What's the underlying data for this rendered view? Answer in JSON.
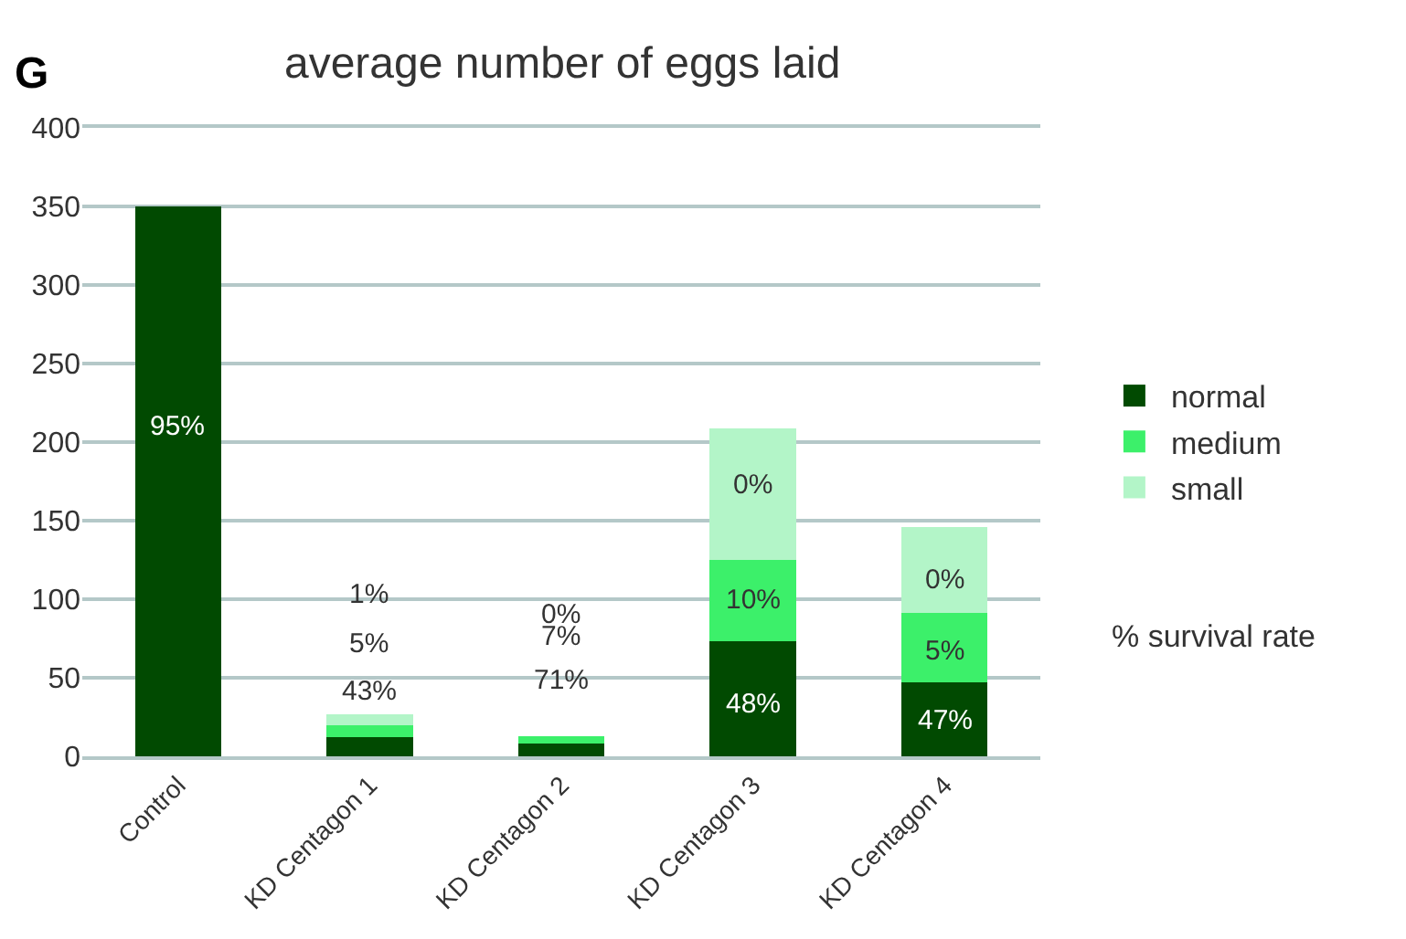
{
  "chart_data": {
    "type": "bar",
    "stacked": true,
    "title": "average number of eggs laid",
    "categories": [
      "Control",
      "KD Centagon 1",
      "KD Centagon 2",
      "KD Centagon 3",
      "KD Centagon 4"
    ],
    "series": [
      {
        "name": "normal",
        "color": "#014a01",
        "values": [
          350,
          12,
          8,
          73,
          47
        ]
      },
      {
        "name": "medium",
        "color": "#3cf06a",
        "values": [
          0,
          8,
          5,
          52,
          44
        ]
      },
      {
        "name": "small",
        "color": "#b3f5c8",
        "values": [
          0,
          7,
          0,
          84,
          55
        ]
      }
    ],
    "ylim": [
      0,
      400
    ],
    "yticks": [
      0,
      50,
      100,
      150,
      200,
      250,
      300,
      350,
      400
    ],
    "grid": "y",
    "legend": "right",
    "annotations": [
      "G",
      "% survival rate",
      "95%",
      "43%",
      "5%",
      "1%",
      "71%",
      "7%",
      "0%",
      "48%",
      "10%",
      "0%",
      "47%",
      "5%",
      "0%"
    ]
  }
}
